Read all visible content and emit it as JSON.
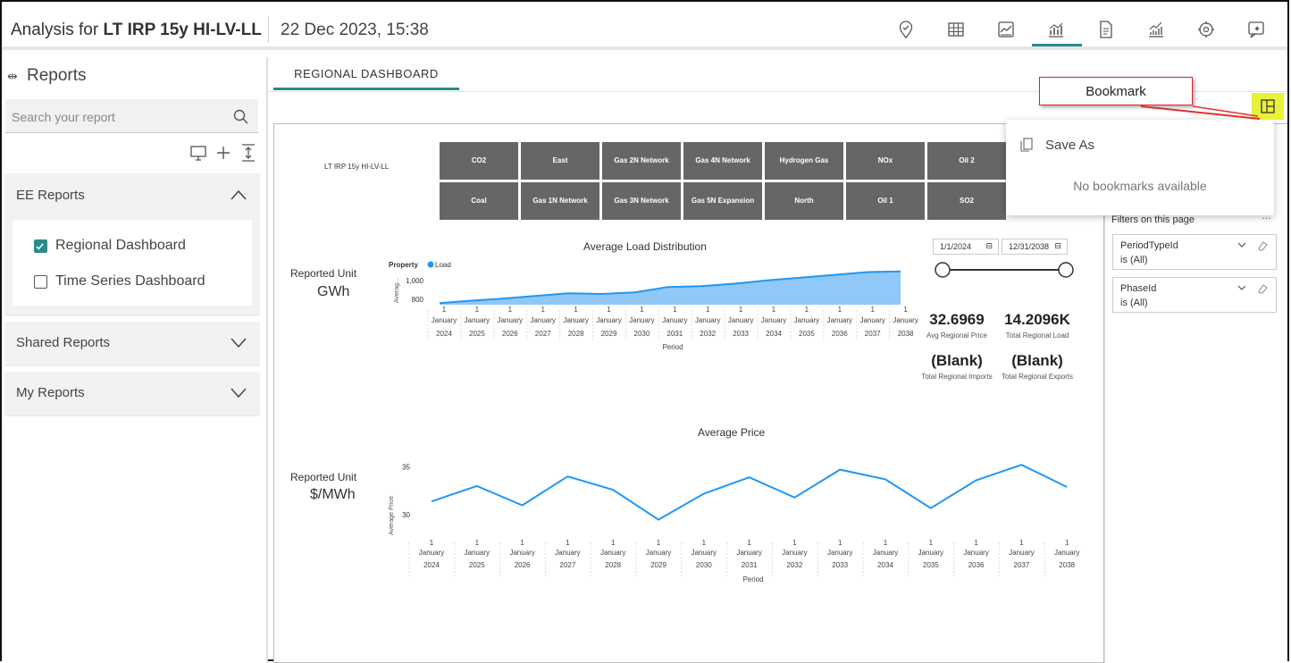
{
  "header": {
    "title_prefix": "Analysis for",
    "analysis_name": "LT IRP 15y HI-LV-LL",
    "datetime": "22 Dec 2023, 15:38"
  },
  "sidebar": {
    "title": "Reports",
    "search_placeholder": "Search your report",
    "sections": [
      {
        "label": "EE Reports",
        "items": [
          "Regional Dashboard",
          "Time Series Dashboard"
        ]
      },
      {
        "label": "Shared Reports"
      },
      {
        "label": "My Reports"
      }
    ]
  },
  "main": {
    "tab_label": "REGIONAL DASHBOARD"
  },
  "dashboard": {
    "scenario_label": "LT IRP 15y HI-LV-LL",
    "reported_unit_label": "Reported Unit",
    "load_unit": "GWh",
    "price_unit": "$/MWh",
    "date_start": "1/1/2024",
    "date_end": "12/31/2038"
  },
  "slicer": {
    "row1": [
      "CO2",
      "East",
      "Gas 2N Network",
      "Gas 4N Network",
      "Hydrogen Gas",
      "NOx",
      "Oil 2"
    ],
    "row2": [
      "Coal",
      "Gas 1N Network",
      "Gas 3N Network",
      "Gas 5N Expansion",
      "North",
      "Oil 1",
      "SO2"
    ],
    "fill_color": "#666666"
  },
  "kpis": [
    {
      "value": "32.6969",
      "label": "Avg Regional Price"
    },
    {
      "value": "14.2096K",
      "label": "Total Regional Load"
    },
    {
      "value": "(Blank)",
      "label": "Total Regional Imports"
    },
    {
      "value": "(Blank)",
      "label": "Total Regional Exports"
    }
  ],
  "filters": {
    "title": "Filters on this page",
    "cards": [
      {
        "name": "PeriodTypeId",
        "value": "is (All)"
      },
      {
        "name": "PhaseId",
        "value": "is (All)"
      }
    ]
  },
  "bookmark": {
    "callout": "Bookmark",
    "save_as": "Save As",
    "empty": "No bookmarks available",
    "highlight_color": "#e8f23a"
  },
  "colors": {
    "accent": "#2a8a8a",
    "series": "#2196f3",
    "area_fill": "#90c8f8"
  },
  "chart_data": [
    {
      "type": "area",
      "title": "Average Load Distribution",
      "legend_title": "Property",
      "series": [
        {
          "name": "Load",
          "values": [
            806,
            820,
            833,
            850,
            866,
            862,
            872,
            905,
            910,
            925,
            946,
            962,
            979,
            996,
            1000
          ]
        }
      ],
      "x_tick_top": "1",
      "x_tick_mid": "January",
      "x": [
        "2024",
        "2025",
        "2026",
        "2027",
        "2028",
        "2029",
        "2030",
        "2031",
        "2032",
        "2033",
        "2034",
        "2035",
        "2036",
        "2037",
        "2038"
      ],
      "xlabel": "Period",
      "ylabel": "Averag...",
      "yticks": [
        "1,000",
        "800"
      ],
      "ylim": [
        780,
        1040
      ]
    },
    {
      "type": "line",
      "title": "Average Price",
      "series": [
        {
          "values": [
            31.4,
            33.0,
            31.0,
            34.0,
            32.6,
            29.5,
            32.2,
            33.9,
            31.8,
            34.7,
            33.7,
            30.7,
            33.6,
            35.2,
            32.9
          ]
        }
      ],
      "x_tick_top": "1",
      "x_tick_mid": "January",
      "x": [
        "2024",
        "2025",
        "2026",
        "2027",
        "2028",
        "2029",
        "2030",
        "2031",
        "2032",
        "2033",
        "2034",
        "2035",
        "2036",
        "2037",
        "2038"
      ],
      "xlabel": "Period",
      "ylabel": "Average Price",
      "yticks": [
        "35",
        "30"
      ],
      "ylim": [
        29,
        35.5
      ]
    }
  ]
}
